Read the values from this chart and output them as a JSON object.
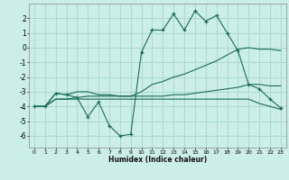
{
  "xlabel": "Humidex (Indice chaleur)",
  "background_color": "#cceee8",
  "grid_color": "#aad8d0",
  "line_color": "#1a6b5a",
  "x_ticks": [
    0,
    1,
    2,
    3,
    4,
    5,
    6,
    7,
    8,
    9,
    10,
    11,
    12,
    13,
    14,
    15,
    16,
    17,
    18,
    19,
    20,
    21,
    22,
    23
  ],
  "y_ticks": [
    -6,
    -5,
    -4,
    -3,
    -2,
    -1,
    0,
    1,
    2
  ],
  "ylim": [
    -6.8,
    3.0
  ],
  "xlim": [
    -0.5,
    23.5
  ],
  "lines": [
    {
      "x": [
        0,
        1,
        2,
        3,
        4,
        5,
        6,
        7,
        8,
        9,
        10,
        11,
        12,
        13,
        14,
        15,
        16,
        17,
        18,
        19,
        20,
        21,
        22,
        23
      ],
      "y": [
        -4.0,
        -4.0,
        -3.1,
        -3.2,
        -3.4,
        -4.7,
        -3.7,
        -5.3,
        -6.0,
        -5.9,
        -0.3,
        1.2,
        1.2,
        2.3,
        1.2,
        2.5,
        1.8,
        2.2,
        1.0,
        -0.2,
        -2.5,
        -2.8,
        -3.5,
        -4.1
      ],
      "marker": "+"
    },
    {
      "x": [
        0,
        1,
        2,
        3,
        4,
        5,
        6,
        7,
        8,
        9,
        10,
        11,
        12,
        13,
        14,
        15,
        16,
        17,
        18,
        19,
        20,
        21,
        22,
        23
      ],
      "y": [
        -4.0,
        -4.0,
        -3.1,
        -3.2,
        -3.0,
        -3.0,
        -3.2,
        -3.2,
        -3.3,
        -3.3,
        -3.0,
        -2.5,
        -2.3,
        -2.0,
        -1.8,
        -1.5,
        -1.2,
        -0.9,
        -0.5,
        -0.1,
        0.0,
        -0.1,
        -0.1,
        -0.2
      ],
      "marker": null
    },
    {
      "x": [
        0,
        1,
        2,
        3,
        4,
        5,
        6,
        7,
        8,
        9,
        10,
        11,
        12,
        13,
        14,
        15,
        16,
        17,
        18,
        19,
        20,
        21,
        22,
        23
      ],
      "y": [
        -4.0,
        -4.0,
        -3.5,
        -3.5,
        -3.5,
        -3.5,
        -3.5,
        -3.5,
        -3.5,
        -3.5,
        -3.5,
        -3.5,
        -3.5,
        -3.5,
        -3.5,
        -3.5,
        -3.5,
        -3.5,
        -3.5,
        -3.5,
        -3.5,
        -3.8,
        -4.0,
        -4.2
      ],
      "marker": null
    },
    {
      "x": [
        0,
        1,
        2,
        3,
        4,
        5,
        6,
        7,
        8,
        9,
        10,
        11,
        12,
        13,
        14,
        15,
        16,
        17,
        18,
        19,
        20,
        21,
        22,
        23
      ],
      "y": [
        -4.0,
        -4.0,
        -3.5,
        -3.5,
        -3.4,
        -3.3,
        -3.3,
        -3.3,
        -3.3,
        -3.3,
        -3.3,
        -3.3,
        -3.3,
        -3.2,
        -3.2,
        -3.1,
        -3.0,
        -2.9,
        -2.8,
        -2.7,
        -2.5,
        -2.5,
        -2.6,
        -2.6
      ],
      "marker": null
    }
  ]
}
